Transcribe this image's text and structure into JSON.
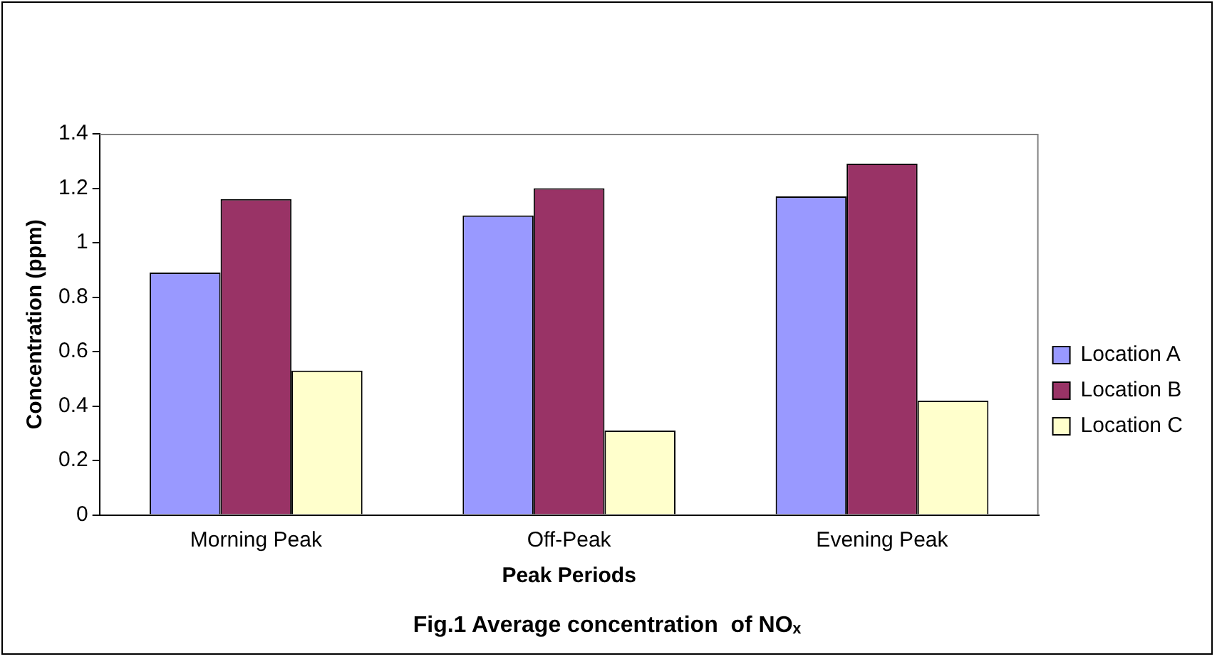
{
  "chart_data": {
    "type": "bar",
    "title": "Fig.1 Average concentration  of NOₓ",
    "xlabel": "Peak Periods",
    "ylabel": "Concentration (ppm)",
    "categories": [
      "Morning Peak",
      "Off-Peak",
      "Evening Peak"
    ],
    "series": [
      {
        "name": "Location A",
        "color": "#9999ff",
        "values": [
          0.89,
          1.1,
          1.17
        ]
      },
      {
        "name": "Location B",
        "color": "#993366",
        "values": [
          1.16,
          1.2,
          1.29
        ]
      },
      {
        "name": "Location C",
        "color": "#ffffcc",
        "values": [
          0.53,
          0.31,
          0.42
        ]
      }
    ],
    "ylim": [
      0,
      1.4
    ],
    "yticks": [
      0,
      0.2,
      0.4,
      0.6,
      0.8,
      1,
      1.2,
      1.4
    ],
    "grid": false,
    "legend": "right"
  }
}
